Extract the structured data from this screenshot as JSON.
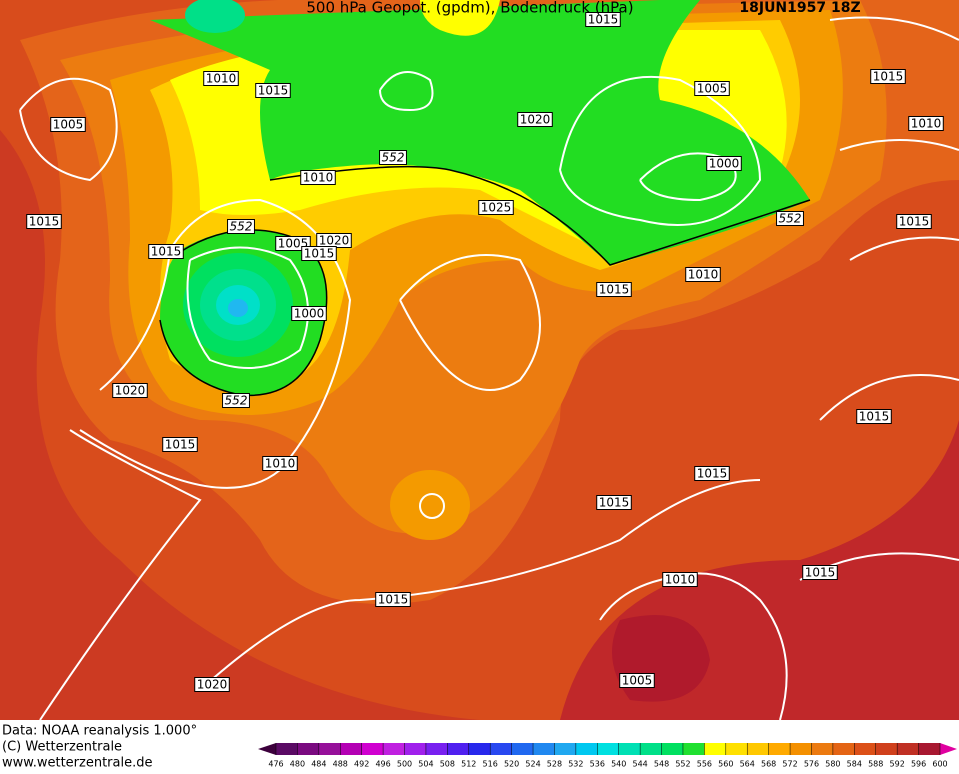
{
  "header": {
    "title": "500 hPa Geopot. (gpdm), Bodendruck (hPa)",
    "date": "18JUN1957 18Z"
  },
  "pressure_labels": [
    1015,
    1010,
    1015,
    1005,
    1015,
    1005,
    1020,
    1010,
    1010,
    1000,
    1025,
    1015,
    1015,
    1005,
    1020,
    1015,
    1015,
    1010,
    1015,
    1000,
    1020,
    1015,
    1015,
    1010,
    1015,
    1015,
    1010,
    1015,
    1015,
    1005,
    1020
  ],
  "geopotential_labels": [
    552,
    552,
    552,
    552
  ],
  "footer": {
    "source": "Data: NOAA reanalysis 1.000°",
    "copyright": "(C) Wetterzentrale",
    "url": "www.wetterzentrale.de"
  },
  "colorbar": {
    "ticks": [
      476,
      480,
      484,
      488,
      492,
      496,
      500,
      504,
      508,
      512,
      516,
      520,
      524,
      528,
      532,
      536,
      540,
      544,
      548,
      552,
      556,
      560,
      564,
      568,
      572,
      576,
      580,
      584,
      588,
      592,
      596,
      600
    ],
    "colors": [
      "#3c003c",
      "#5a0a64",
      "#7a0a80",
      "#96109a",
      "#b400b4",
      "#d000d0",
      "#c020e0",
      "#a020ec",
      "#7820f0",
      "#5020f0",
      "#2828ec",
      "#2848f0",
      "#2068f0",
      "#2088f0",
      "#20a8f0",
      "#00c8f0",
      "#00e0e0",
      "#00e0b4",
      "#00e088",
      "#00e060",
      "#20e030",
      "#ffff00",
      "#ffe000",
      "#ffc800",
      "#ffaa00",
      "#f49000",
      "#ec7a10",
      "#e46414",
      "#dc5018",
      "#d0401c",
      "#c03024",
      "#a81830",
      "#e000a0"
    ]
  }
}
